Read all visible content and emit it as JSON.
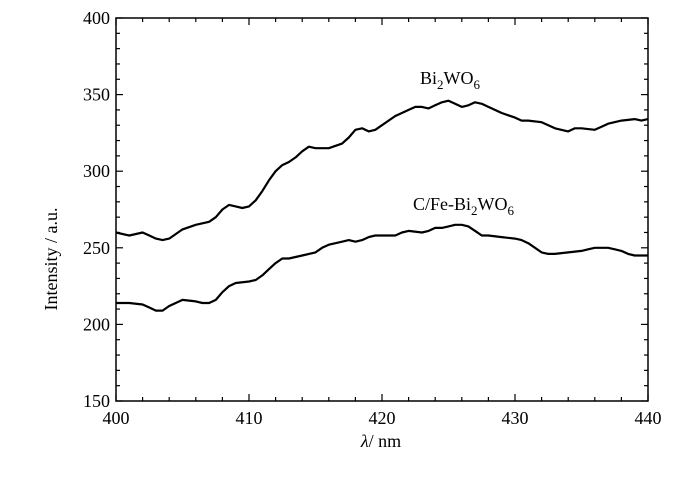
{
  "chart_data": {
    "type": "line",
    "title": "",
    "xlabel": {
      "symbol": "λ",
      "unit": "/ nm"
    },
    "ylabel": "Intensity / a.u.",
    "xlim": [
      400,
      440
    ],
    "ylim": [
      150,
      400
    ],
    "xticks": [
      400,
      410,
      420,
      430,
      440
    ],
    "yticks": [
      150,
      200,
      250,
      300,
      350,
      400
    ],
    "grid": false,
    "legend": "none",
    "series": [
      {
        "name": "Bi2WO6",
        "label": {
          "base": "Bi",
          "sub1": "2",
          "mid": "WO",
          "sub2": "6"
        },
        "color": "#000000",
        "points": [
          [
            400,
            260
          ],
          [
            401,
            258
          ],
          [
            402,
            260
          ],
          [
            402.5,
            258
          ],
          [
            403,
            256
          ],
          [
            403.5,
            255
          ],
          [
            404,
            256
          ],
          [
            405,
            262
          ],
          [
            406,
            265
          ],
          [
            407,
            267
          ],
          [
            407.5,
            270
          ],
          [
            408,
            275
          ],
          [
            408.5,
            278
          ],
          [
            409,
            277
          ],
          [
            409.5,
            276
          ],
          [
            410,
            277
          ],
          [
            410.5,
            281
          ],
          [
            411,
            287
          ],
          [
            411.5,
            294
          ],
          [
            412,
            300
          ],
          [
            412.5,
            304
          ],
          [
            413,
            306
          ],
          [
            413.5,
            309
          ],
          [
            414,
            313
          ],
          [
            414.5,
            316
          ],
          [
            415,
            315
          ],
          [
            416,
            315
          ],
          [
            417,
            318
          ],
          [
            417.5,
            322
          ],
          [
            418,
            327
          ],
          [
            418.5,
            328
          ],
          [
            419,
            326
          ],
          [
            419.5,
            327
          ],
          [
            420,
            330
          ],
          [
            420.5,
            333
          ],
          [
            421,
            336
          ],
          [
            421.5,
            338
          ],
          [
            422,
            340
          ],
          [
            422.5,
            342
          ],
          [
            423,
            342
          ],
          [
            423.5,
            341
          ],
          [
            424,
            343
          ],
          [
            424.5,
            345
          ],
          [
            425,
            346
          ],
          [
            425.5,
            344
          ],
          [
            426,
            342
          ],
          [
            426.5,
            343
          ],
          [
            427,
            345
          ],
          [
            427.5,
            344
          ],
          [
            428,
            342
          ],
          [
            429,
            338
          ],
          [
            430,
            335
          ],
          [
            430.5,
            333
          ],
          [
            431,
            333
          ],
          [
            432,
            332
          ],
          [
            432.5,
            330
          ],
          [
            433,
            328
          ],
          [
            434,
            326
          ],
          [
            434.5,
            328
          ],
          [
            435,
            328
          ],
          [
            436,
            327
          ],
          [
            436.5,
            329
          ],
          [
            437,
            331
          ],
          [
            438,
            333
          ],
          [
            439,
            334
          ],
          [
            439.5,
            333
          ],
          [
            440,
            334
          ]
        ]
      },
      {
        "name": "C/Fe-Bi2WO6",
        "label": {
          "base": "C/Fe-Bi",
          "sub1": "2",
          "mid": "WO",
          "sub2": "6"
        },
        "color": "#000000",
        "points": [
          [
            400,
            214
          ],
          [
            401,
            214
          ],
          [
            402,
            213
          ],
          [
            402.5,
            211
          ],
          [
            403,
            209
          ],
          [
            403.5,
            209
          ],
          [
            404,
            212
          ],
          [
            405,
            216
          ],
          [
            406,
            215
          ],
          [
            406.5,
            214
          ],
          [
            407,
            214
          ],
          [
            407.5,
            216
          ],
          [
            408,
            221
          ],
          [
            408.5,
            225
          ],
          [
            409,
            227
          ],
          [
            410,
            228
          ],
          [
            410.5,
            229
          ],
          [
            411,
            232
          ],
          [
            411.5,
            236
          ],
          [
            412,
            240
          ],
          [
            412.5,
            243
          ],
          [
            413,
            243
          ],
          [
            414,
            245
          ],
          [
            415,
            247
          ],
          [
            415.5,
            250
          ],
          [
            416,
            252
          ],
          [
            417,
            254
          ],
          [
            417.5,
            255
          ],
          [
            418,
            254
          ],
          [
            418.5,
            255
          ],
          [
            419,
            257
          ],
          [
            419.5,
            258
          ],
          [
            420,
            258
          ],
          [
            421,
            258
          ],
          [
            421.5,
            260
          ],
          [
            422,
            261
          ],
          [
            423,
            260
          ],
          [
            423.5,
            261
          ],
          [
            424,
            263
          ],
          [
            424.5,
            263
          ],
          [
            425,
            264
          ],
          [
            425.5,
            265
          ],
          [
            426,
            265
          ],
          [
            426.5,
            264
          ],
          [
            427,
            261
          ],
          [
            427.5,
            258
          ],
          [
            428,
            258
          ],
          [
            429,
            257
          ],
          [
            430,
            256
          ],
          [
            430.5,
            255
          ],
          [
            431,
            253
          ],
          [
            431.5,
            250
          ],
          [
            432,
            247
          ],
          [
            432.5,
            246
          ],
          [
            433,
            246
          ],
          [
            434,
            247
          ],
          [
            435,
            248
          ],
          [
            435.5,
            249
          ],
          [
            436,
            250
          ],
          [
            437,
            250
          ],
          [
            437.5,
            249
          ],
          [
            438,
            248
          ],
          [
            438.5,
            246
          ],
          [
            439,
            245
          ],
          [
            439.5,
            245
          ],
          [
            440,
            245
          ]
        ]
      }
    ]
  }
}
